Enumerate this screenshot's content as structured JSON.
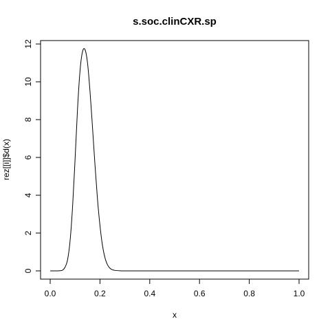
{
  "chart_data": {
    "type": "line",
    "title": "s.soc.clinCXR.sp",
    "xlabel": "x",
    "ylabel": "rez[[i]]$d(x)",
    "xlim": [
      0,
      1
    ],
    "ylim": [
      0,
      12
    ],
    "xticks": [
      0.0,
      0.2,
      0.4,
      0.6,
      0.8,
      1.0
    ],
    "xtick_labels": [
      "0.0",
      "0.2",
      "0.4",
      "0.6",
      "0.8",
      "1.0"
    ],
    "yticks": [
      0,
      2,
      4,
      6,
      8,
      10,
      12
    ],
    "ytick_labels": [
      "0",
      "2",
      "4",
      "6",
      "8",
      "10",
      "12"
    ],
    "grid": false,
    "legend": "none",
    "series": [
      {
        "color": "#000000",
        "x": [
          0.0,
          0.02,
          0.04,
          0.05,
          0.06,
          0.07,
          0.08,
          0.09,
          0.1,
          0.11,
          0.12,
          0.13,
          0.14,
          0.15,
          0.16,
          0.17,
          0.18,
          0.19,
          0.2,
          0.21,
          0.22,
          0.23,
          0.24,
          0.25,
          0.26,
          0.28,
          0.3,
          0.35,
          0.4,
          0.5,
          0.6,
          0.7,
          0.8,
          0.9,
          1.0
        ],
        "y": [
          0.0,
          0.0,
          0.01,
          0.04,
          0.2,
          0.6,
          1.6,
          3.4,
          5.9,
          8.6,
          10.6,
          11.6,
          11.7,
          11.0,
          9.5,
          7.6,
          5.6,
          3.8,
          2.4,
          1.35,
          0.7,
          0.33,
          0.14,
          0.06,
          0.025,
          0.005,
          0.0,
          0.0,
          0.0,
          0.0,
          0.0,
          0.0,
          0.0,
          0.0,
          0.0
        ]
      }
    ]
  }
}
